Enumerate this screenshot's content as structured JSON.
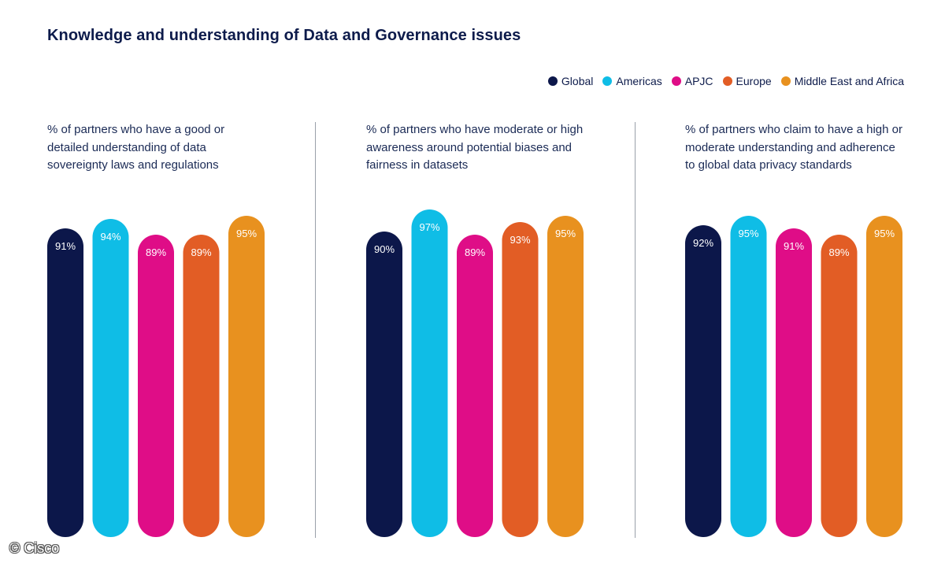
{
  "title": "Knowledge and understanding of Data and Governance issues",
  "copyright": "© Cisco",
  "legend": [
    {
      "label": "Global",
      "color": "#0c174a"
    },
    {
      "label": "Americas",
      "color": "#0fbde6"
    },
    {
      "label": "APJC",
      "color": "#df0d87"
    },
    {
      "label": "Europe",
      "color": "#e25d25"
    },
    {
      "label": "Middle East and Africa",
      "color": "#e8911f"
    }
  ],
  "chart_data": [
    {
      "type": "bar",
      "title": "% of partners who have a good or detailed understanding of data sovereignty laws and regulations",
      "categories": [
        "Global",
        "Americas",
        "APJC",
        "Europe",
        "Middle East and Africa"
      ],
      "values": [
        91,
        94,
        89,
        89,
        95
      ],
      "labels": [
        "91%",
        "94%",
        "89%",
        "89%",
        "95%"
      ],
      "ylim": [
        0,
        100
      ]
    },
    {
      "type": "bar",
      "title": "% of partners who have moderate or high awareness around potential biases and fairness in datasets",
      "categories": [
        "Global",
        "Americas",
        "APJC",
        "Europe",
        "Middle East and Africa"
      ],
      "values": [
        90,
        97,
        89,
        93,
        95
      ],
      "labels": [
        "90%",
        "97%",
        "89%",
        "93%",
        "95%"
      ],
      "ylim": [
        0,
        100
      ]
    },
    {
      "type": "bar",
      "title": "% of partners who claim to have a high or moderate understanding and adherence to global data privacy standards",
      "categories": [
        "Global",
        "Americas",
        "APJC",
        "Europe",
        "Middle East and Africa"
      ],
      "values": [
        92,
        95,
        91,
        89,
        95
      ],
      "labels": [
        "92%",
        "95%",
        "91%",
        "89%",
        "95%"
      ],
      "ylim": [
        0,
        100
      ]
    }
  ]
}
